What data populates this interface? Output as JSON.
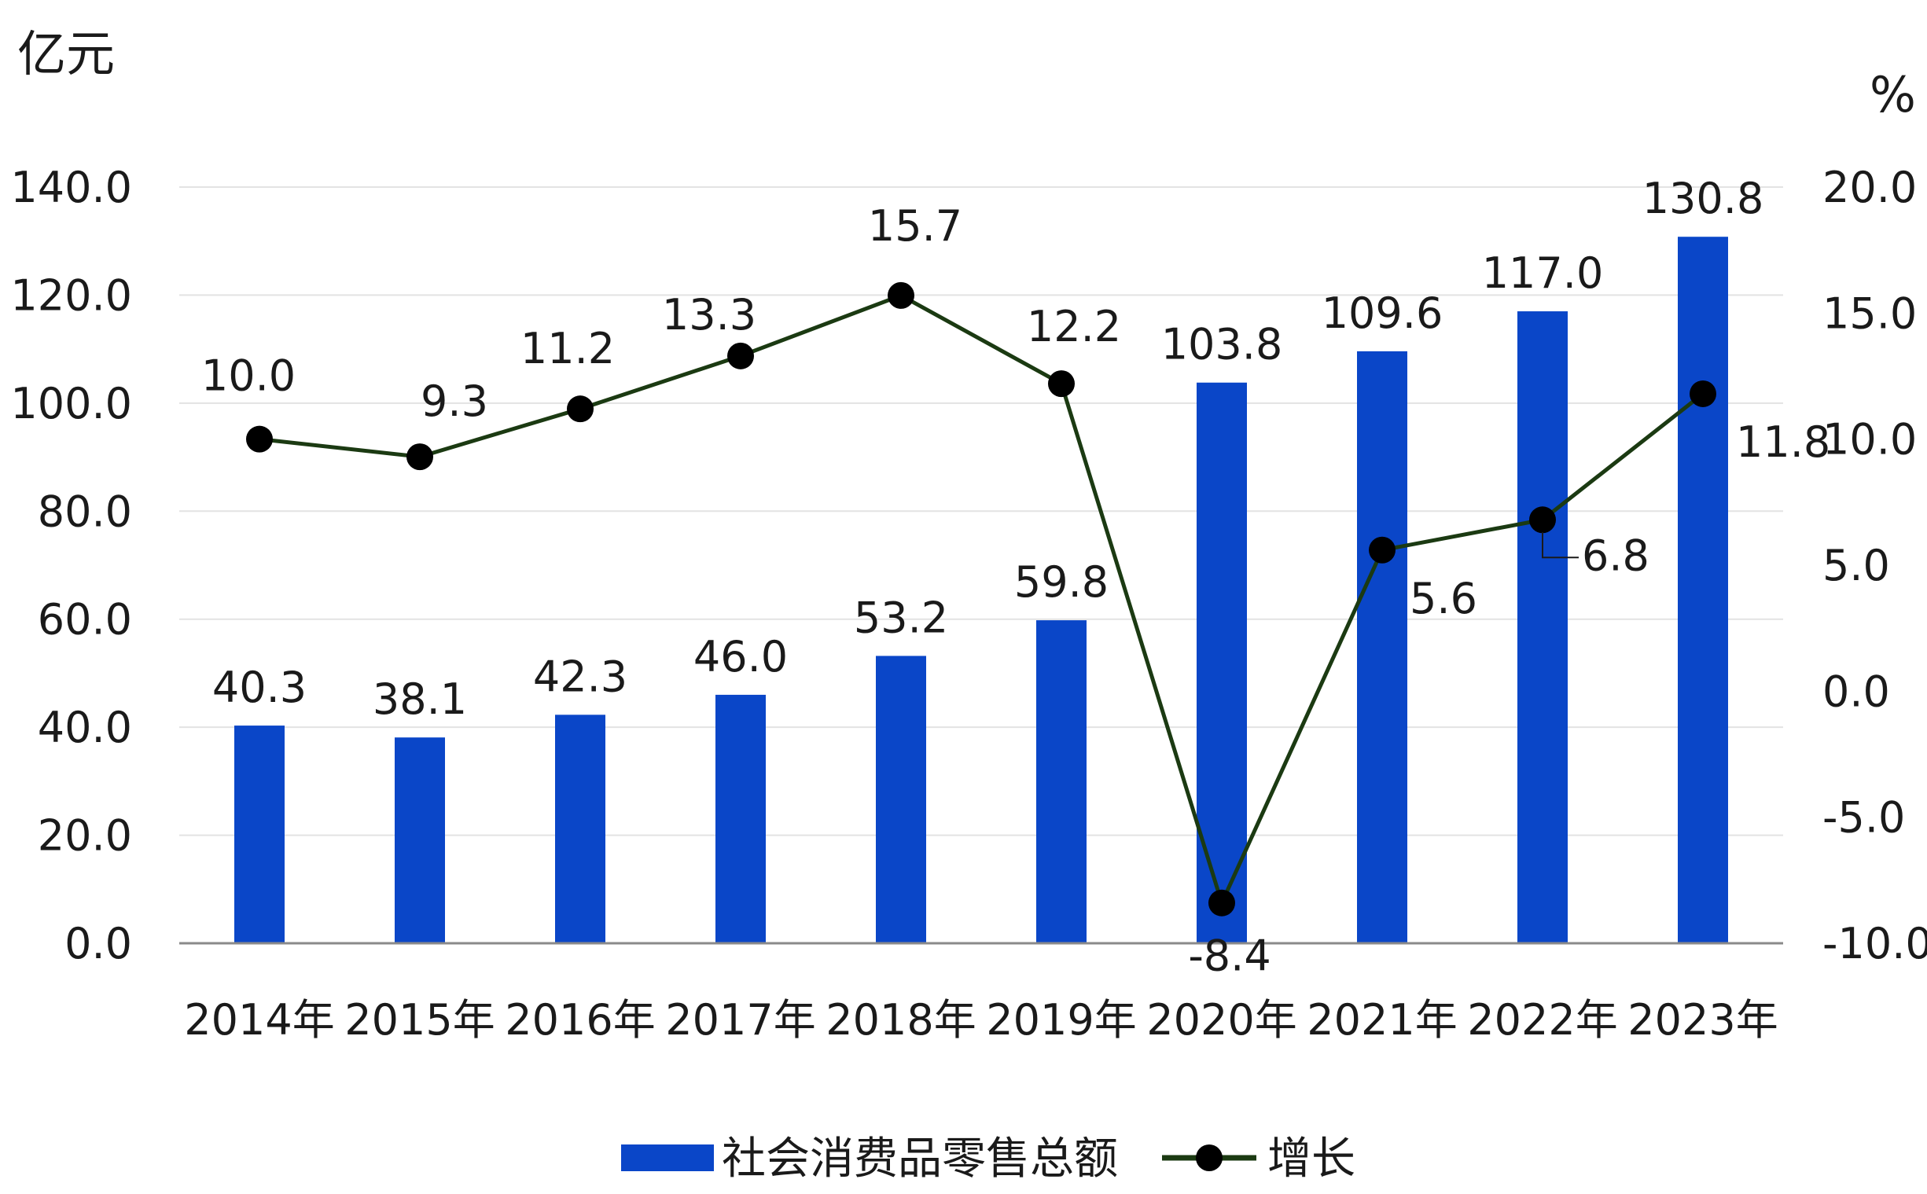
{
  "chart_data": {
    "type": "bar+line",
    "categories": [
      "2014年",
      "2015年",
      "2016年",
      "2017年",
      "2018年",
      "2019年",
      "2020年",
      "2021年",
      "2022年",
      "2023年"
    ],
    "series": [
      {
        "name": "社会消费品零售总额",
        "type": "bar",
        "axis": "left",
        "color": "#0a46c8",
        "values": [
          40.3,
          38.1,
          42.3,
          46.0,
          53.2,
          59.8,
          103.8,
          109.6,
          117.0,
          130.8
        ],
        "labels": [
          "40.3",
          "38.1",
          "42.3",
          "46.0",
          "53.2",
          "59.8",
          "103.8",
          "109.6",
          "117.0",
          "130.8"
        ]
      },
      {
        "name": "增长",
        "type": "line",
        "axis": "right",
        "color": "#1b3a12",
        "marker_color": "#000000",
        "values": [
          10.0,
          9.3,
          11.2,
          13.3,
          15.7,
          12.2,
          -8.4,
          5.6,
          6.8,
          11.8
        ],
        "labels": [
          "10.0",
          "9.3",
          "11.2",
          "13.3",
          "15.7",
          "12.2",
          "-8.4",
          "5.6",
          "6.8",
          "11.8"
        ]
      }
    ],
    "y_left": {
      "unit": "亿元",
      "range": [
        0,
        140
      ],
      "ticks": [
        "0.0",
        "20.0",
        "40.0",
        "60.0",
        "80.0",
        "100.0",
        "120.0",
        "140.0"
      ]
    },
    "y_right": {
      "unit": "%",
      "range": [
        -10,
        20
      ],
      "ticks": [
        "-10.0",
        "-5.0",
        "0.0",
        "5.0",
        "10.0",
        "15.0",
        "20.0"
      ]
    },
    "grid": true,
    "legend": "bottom-center"
  }
}
